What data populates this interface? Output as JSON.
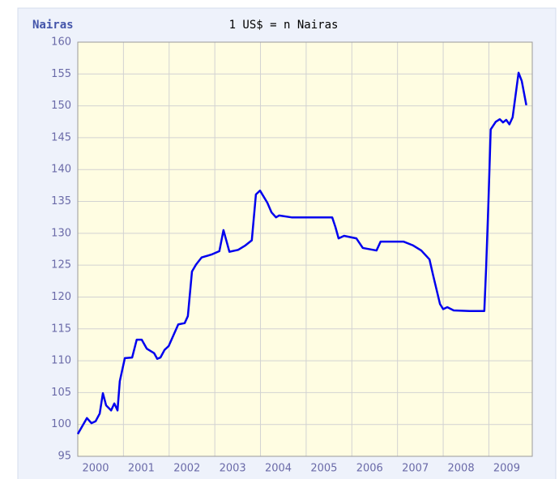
{
  "chart_data": {
    "type": "line",
    "title": "1 US$ = n Nairas",
    "y_label": "Nairas",
    "x": [
      2000.0,
      2000.2,
      2000.3,
      2000.39,
      2000.48,
      2000.55,
      2000.62,
      2000.73,
      2000.8,
      2000.87,
      2000.92,
      2001.03,
      2001.19,
      2001.29,
      2001.4,
      2001.51,
      2001.67,
      2001.74,
      2001.81,
      2001.9,
      2001.99,
      2002.2,
      2002.34,
      2002.41,
      2002.5,
      2002.59,
      2002.71,
      2002.94,
      2003.1,
      2003.19,
      2003.32,
      2003.51,
      2003.67,
      2003.81,
      2003.9,
      2003.99,
      2004.15,
      2004.24,
      2004.34,
      2004.41,
      2004.68,
      2005.57,
      2005.64,
      2005.71,
      2005.83,
      2006.1,
      2006.24,
      2006.54,
      2006.63,
      2007.13,
      2007.34,
      2007.52,
      2007.7,
      2007.78,
      2007.93,
      2008.0,
      2008.09,
      2008.23,
      2008.58,
      2008.9,
      2008.94,
      2008.99,
      2009.04,
      2009.15,
      2009.24,
      2009.31,
      2009.38,
      2009.45,
      2009.52,
      2009.65,
      2009.72,
      2009.82
    ],
    "series": [
      {
        "name": "Nairas",
        "color": "#0000ee",
        "values": [
          98.5,
          101.0,
          100.2,
          100.5,
          101.7,
          104.9,
          103.0,
          102.2,
          103.3,
          102.2,
          106.8,
          110.4,
          110.5,
          113.3,
          113.3,
          111.9,
          111.2,
          110.3,
          110.5,
          111.7,
          112.3,
          115.7,
          115.9,
          117.0,
          124.0,
          125.1,
          126.2,
          126.7,
          127.2,
          130.5,
          127.1,
          127.4,
          128.1,
          128.9,
          136.1,
          136.7,
          134.8,
          133.3,
          132.5,
          132.8,
          132.5,
          132.5,
          131.0,
          129.2,
          129.6,
          129.2,
          127.7,
          127.3,
          128.7,
          128.7,
          128.1,
          127.3,
          125.9,
          123.4,
          118.9,
          118.1,
          118.4,
          117.9,
          117.8,
          117.8,
          124.6,
          134.8,
          146.3,
          147.5,
          147.9,
          147.4,
          147.8,
          147.1,
          148.2,
          155.2,
          153.9,
          150.1
        ]
      }
    ],
    "xlim": [
      2000,
      2009.95
    ],
    "xticks": [
      2000,
      2001,
      2002,
      2003,
      2004,
      2005,
      2006,
      2007,
      2008,
      2009
    ],
    "ylim": [
      95,
      160
    ],
    "yticks": [
      95,
      100,
      105,
      110,
      115,
      120,
      125,
      130,
      135,
      140,
      145,
      150,
      155,
      160
    ],
    "grid": true
  }
}
